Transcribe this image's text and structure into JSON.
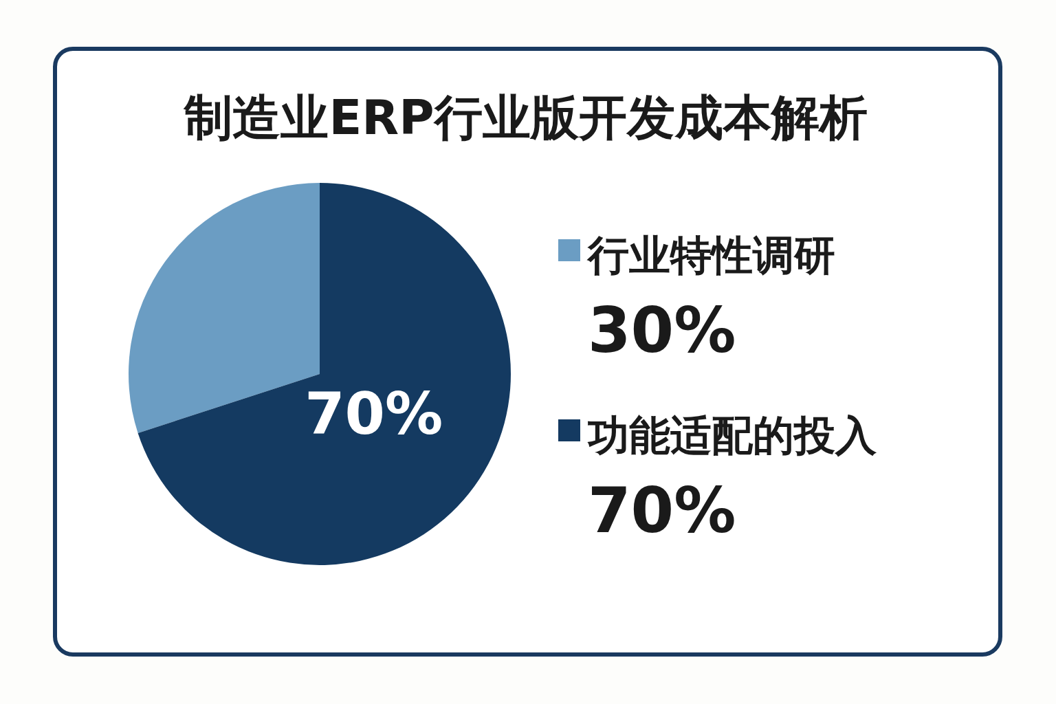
{
  "chart_data": {
    "type": "pie",
    "title": "制造业ERP行业版开发成本解析",
    "categories": [
      "行业特性调研",
      "功能适配的投入"
    ],
    "values": [
      30,
      70
    ],
    "colors": [
      "#6b9dc3",
      "#143a61"
    ],
    "value_labels": [
      "30%",
      "70%"
    ],
    "legend": "right"
  }
}
